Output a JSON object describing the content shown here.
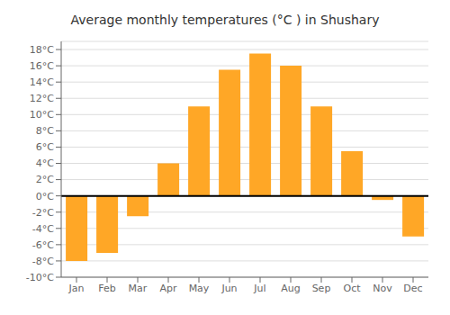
{
  "chart_data": {
    "type": "bar",
    "title": "Average monthly temperatures (°C ) in Shushary",
    "categories": [
      "Jan",
      "Feb",
      "Mar",
      "Apr",
      "May",
      "Jun",
      "Jul",
      "Aug",
      "Sep",
      "Oct",
      "Nov",
      "Dec"
    ],
    "values": [
      -8,
      -7,
      -2.5,
      4,
      11,
      15.5,
      17.5,
      16,
      11,
      5.5,
      -0.5,
      -5
    ],
    "color": "#FFA726",
    "ylim": [
      -10,
      19
    ],
    "yticks": [
      {
        "value": -10,
        "label": "-10°C"
      },
      {
        "value": -8,
        "label": "-8°C"
      },
      {
        "value": -6,
        "label": "-6°C"
      },
      {
        "value": -4,
        "label": "-4°C"
      },
      {
        "value": -2,
        "label": "-2°C"
      },
      {
        "value": 0,
        "label": "0°C"
      },
      {
        "value": 2,
        "label": "2°C"
      },
      {
        "value": 4,
        "label": "4°C"
      },
      {
        "value": 6,
        "label": "6°C"
      },
      {
        "value": 8,
        "label": "8°C"
      },
      {
        "value": 10,
        "label": "10°C"
      },
      {
        "value": 12,
        "label": "12°C"
      },
      {
        "value": 14,
        "label": "14°C"
      },
      {
        "value": 16,
        "label": "16°C"
      },
      {
        "value": 18,
        "label": "18°C"
      }
    ],
    "grid": true
  }
}
